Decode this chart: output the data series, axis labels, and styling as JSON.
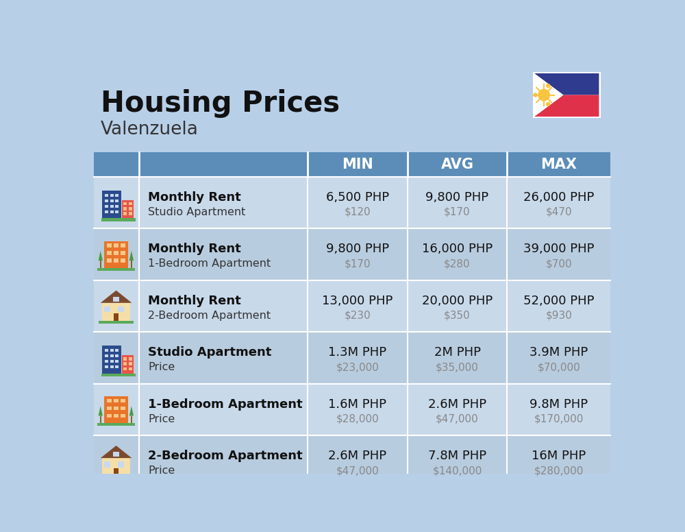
{
  "title": "Housing Prices",
  "subtitle": "Valenzuela",
  "background_color": "#b8cfe8",
  "header_color": "#5b8db8",
  "header_text_color": "#ffffff",
  "row_color_light": "#c8d9ea",
  "row_color_dark": "#b8ccdf",
  "col_header": [
    "MIN",
    "AVG",
    "MAX"
  ],
  "rows": [
    {
      "label1": "Monthly Rent",
      "label2": "Studio Apartment",
      "min_php": "6,500 PHP",
      "min_usd": "$120",
      "avg_php": "9,800 PHP",
      "avg_usd": "$170",
      "max_php": "26,000 PHP",
      "max_usd": "$470",
      "icon": "studio_blue"
    },
    {
      "label1": "Monthly Rent",
      "label2": "1-Bedroom Apartment",
      "min_php": "9,800 PHP",
      "min_usd": "$170",
      "avg_php": "16,000 PHP",
      "avg_usd": "$280",
      "max_php": "39,000 PHP",
      "max_usd": "$700",
      "icon": "one_bed_orange"
    },
    {
      "label1": "Monthly Rent",
      "label2": "2-Bedroom Apartment",
      "min_php": "13,000 PHP",
      "min_usd": "$230",
      "avg_php": "20,000 PHP",
      "avg_usd": "$350",
      "max_php": "52,000 PHP",
      "max_usd": "$930",
      "icon": "two_bed_tan"
    },
    {
      "label1": "Studio Apartment",
      "label2": "Price",
      "min_php": "1.3M PHP",
      "min_usd": "$23,000",
      "avg_php": "2M PHP",
      "avg_usd": "$35,000",
      "max_php": "3.9M PHP",
      "max_usd": "$70,000",
      "icon": "studio_blue"
    },
    {
      "label1": "1-Bedroom Apartment",
      "label2": "Price",
      "min_php": "1.6M PHP",
      "min_usd": "$28,000",
      "avg_php": "2.6M PHP",
      "avg_usd": "$47,000",
      "max_php": "9.8M PHP",
      "max_usd": "$170,000",
      "icon": "one_bed_orange"
    },
    {
      "label1": "2-Bedroom Apartment",
      "label2": "Price",
      "min_php": "2.6M PHP",
      "min_usd": "$47,000",
      "avg_php": "7.8M PHP",
      "avg_usd": "$140,000",
      "max_php": "16M PHP",
      "max_usd": "$280,000",
      "icon": "two_bed_tan"
    }
  ]
}
